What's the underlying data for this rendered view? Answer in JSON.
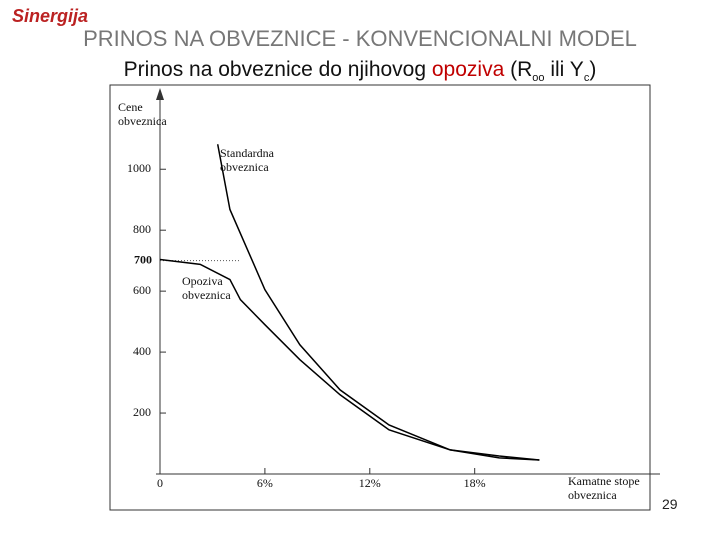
{
  "header": {
    "logo": "Sinergija",
    "title": "PRINOS NA OBVEZNICE - KONVENCIONALNI MODEL",
    "subtitle": [
      "Prinos na obveznice do njihovog ",
      "opoziva",
      " (R",
      "oo",
      " ili Y",
      "c",
      ")"
    ]
  },
  "footer": {
    "page": "29"
  },
  "chart_data": {
    "type": "line",
    "ylabel": "Cene obveznica",
    "xlabel": "Kamatne stope obveznica",
    "xlim": [
      0,
      28.6
    ],
    "ylim": [
      0,
      1260
    ],
    "xticks": [
      0,
      {
        "value": 6,
        "label": "6%"
      },
      {
        "value": 12,
        "label": "12%"
      },
      {
        "value": 18,
        "label": "18%"
      }
    ],
    "yticks": [
      200,
      400,
      600,
      800,
      1000
    ],
    "reference_line": 700,
    "series": [
      {
        "name": "Standardna obveznica",
        "color": "#000000",
        "x": [
          3.3,
          4,
          6,
          8,
          10.3,
          13.1,
          16.6,
          19.4,
          21.7
        ],
        "values": [
          1082,
          868,
          605,
          424,
          276,
          161,
          79,
          53,
          46
        ]
      },
      {
        "name": "Opoziva obveznica",
        "color": "#000000",
        "x": [
          0,
          2.3,
          4,
          4.6,
          6,
          8,
          10.3,
          13.1,
          16.6,
          19.4,
          21.7
        ],
        "values": [
          704,
          688,
          638,
          572,
          490,
          375,
          260,
          145,
          79,
          59,
          46
        ]
      }
    ]
  }
}
